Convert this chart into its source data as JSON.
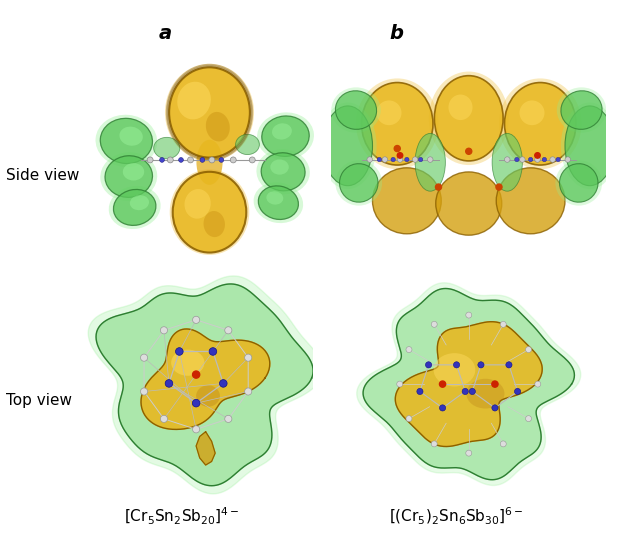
{
  "title_a": "a",
  "title_b": "b",
  "label_side": "Side view",
  "label_top": "Top view",
  "formula_a": "[Cr$_5$Sn$_2$Sb$_{20}$]$^{4-}$",
  "formula_b": "[(Cr$_5$)$_2$Sn$_6$Sb$_{30}$]$^{6-}$",
  "bg_color": "#ffffff",
  "gold_inner": "#D4A500",
  "gold_outer": "#C8960A",
  "gold_edge": "#8B6000",
  "green_inner": "#5DBB5D",
  "green_outer": "#90EE90",
  "green_edge": "#2E7D32",
  "red_dot": "#CC2200",
  "blue_dot": "#3333BB",
  "gray_line": "#888888",
  "white_atom": "#DDDDDD",
  "fig_width": 6.25,
  "fig_height": 5.41
}
